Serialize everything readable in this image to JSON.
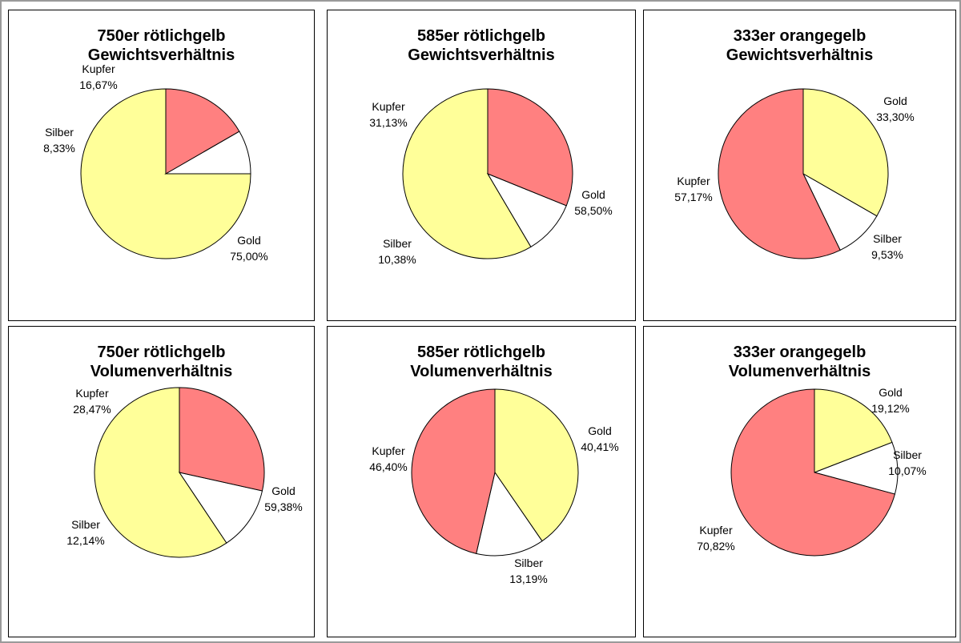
{
  "colors": {
    "Gold": "#ffff99",
    "Silber": "#ffffff",
    "Kupfer": "#ff8080"
  },
  "chart_data": [
    {
      "type": "pie",
      "title": [
        "750er rötlichgelb",
        "Gewichtsverhältnis"
      ],
      "slices": [
        {
          "label": "Gold",
          "value": 75.0,
          "value_text": "75,00%"
        },
        {
          "label": "Silber",
          "value": 8.33,
          "value_text": "8,33%"
        },
        {
          "label": "Kupfer",
          "value": 16.67,
          "value_text": "16,67%"
        }
      ]
    },
    {
      "type": "pie",
      "title": [
        "585er rötlichgelb",
        "Gewichtsverhältnis"
      ],
      "slices": [
        {
          "label": "Gold",
          "value": 58.5,
          "value_text": "58,50%"
        },
        {
          "label": "Silber",
          "value": 10.38,
          "value_text": "10,38%"
        },
        {
          "label": "Kupfer",
          "value": 31.13,
          "value_text": "31,13%"
        }
      ]
    },
    {
      "type": "pie",
      "title": [
        "333er orangegelb",
        "Gewichtsverhältnis"
      ],
      "slices": [
        {
          "label": "Gold",
          "value": 33.3,
          "value_text": "33,30%"
        },
        {
          "label": "Silber",
          "value": 9.53,
          "value_text": "9,53%"
        },
        {
          "label": "Kupfer",
          "value": 57.17,
          "value_text": "57,17%"
        }
      ]
    },
    {
      "type": "pie",
      "title": [
        "750er rötlichgelb",
        "Volumenverhältnis"
      ],
      "slices": [
        {
          "label": "Gold",
          "value": 59.38,
          "value_text": "59,38%"
        },
        {
          "label": "Silber",
          "value": 12.14,
          "value_text": "12,14%"
        },
        {
          "label": "Kupfer",
          "value": 28.47,
          "value_text": "28,47%"
        }
      ]
    },
    {
      "type": "pie",
      "title": [
        "585er rötlichgelb",
        "Volumenverhältnis"
      ],
      "slices": [
        {
          "label": "Gold",
          "value": 40.41,
          "value_text": "40,41%"
        },
        {
          "label": "Silber",
          "value": 13.19,
          "value_text": "13,19%"
        },
        {
          "label": "Kupfer",
          "value": 46.4,
          "value_text": "46,40%"
        }
      ]
    },
    {
      "type": "pie",
      "title": [
        "333er orangegelb",
        "Volumenverhältnis"
      ],
      "slices": [
        {
          "label": "Gold",
          "value": 19.12,
          "value_text": "19,12%"
        },
        {
          "label": "Silber",
          "value": 10.07,
          "value_text": "10,07%"
        },
        {
          "label": "Kupfer",
          "value": 70.82,
          "value_text": "70,82%"
        }
      ]
    }
  ]
}
